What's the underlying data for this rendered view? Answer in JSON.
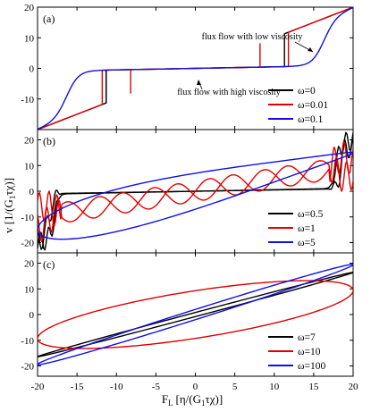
{
  "figure": {
    "ylabel": "v [1/(G",
    "ylabel_sub": "1",
    "ylabel_tail": "τχ)]",
    "xlabel": "F",
    "xlabel_sub": "L",
    "xlabel_mid": "[η/(G",
    "xlabel_sub2": "1",
    "xlabel_tail": "τχ)]"
  },
  "colors": {
    "black": "#000000",
    "red": "#e00000",
    "blue": "#1010e0"
  },
  "chart_data": [
    {
      "type": "line",
      "panel": "(a)",
      "xlim": [
        -20,
        20
      ],
      "ylim": [
        -20,
        20
      ],
      "x_ticks": [
        -20,
        -15,
        -10,
        -5,
        0,
        5,
        10,
        15,
        20
      ],
      "y_ticks": [
        -10,
        0,
        10,
        20
      ],
      "annotations": [
        "flux flow with low viscosity",
        "flux flow with high viscosity"
      ],
      "series": [
        {
          "name": "ω=0",
          "color": "black",
          "jump_fl": 11.3,
          "jump_v": [
            0.5,
            9.5
          ]
        },
        {
          "name": "ω=0.01",
          "color": "red",
          "jump_fl": 11.8,
          "jump_v": [
            0.5,
            10.0
          ]
        },
        {
          "name": "ω=0.1",
          "color": "blue",
          "jump_fl": 16.8,
          "jump_v": [
            0.8,
            14.0
          ]
        }
      ]
    },
    {
      "type": "line",
      "panel": "(b)",
      "xlim": [
        -20,
        20
      ],
      "ylim": [
        -24,
        24
      ],
      "x_ticks": [
        -20,
        -15,
        -10,
        -5,
        0,
        5,
        10,
        15,
        20
      ],
      "y_ticks": [
        -20,
        -10,
        0,
        10,
        20
      ],
      "series": [
        {
          "name": "ω=0.5",
          "color": "black"
        },
        {
          "name": "ω=1",
          "color": "red"
        },
        {
          "name": "ω=5",
          "color": "blue"
        }
      ]
    },
    {
      "type": "line",
      "panel": "(c)",
      "xlim": [
        -20,
        20
      ],
      "ylim": [
        -24,
        24
      ],
      "x_ticks": [
        -20,
        -15,
        -10,
        -5,
        0,
        5,
        10,
        15,
        20
      ],
      "y_ticks": [
        -20,
        -10,
        0,
        10,
        20
      ],
      "series": [
        {
          "name": "ω=7",
          "color": "black",
          "center_slope": 0.82,
          "half_width_v": 0.8
        },
        {
          "name": "ω=10",
          "color": "red",
          "amplitude_v": 13.0,
          "phase_deg": 45
        },
        {
          "name": "ω=100",
          "color": "blue",
          "center_slope": 0.97,
          "half_width_v": 2.0
        }
      ]
    }
  ]
}
